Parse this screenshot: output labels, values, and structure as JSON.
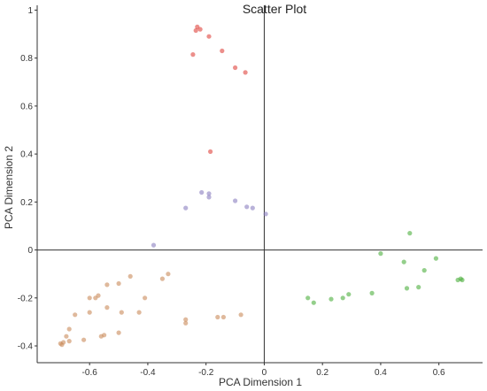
{
  "chart_data": {
    "type": "scatter",
    "title": "Scatter Plot",
    "xlabel": "PCA Dimension 1",
    "ylabel": "PCA Dimension 2",
    "xlim": [
      -0.78,
      0.75
    ],
    "ylim": [
      -0.47,
      1.02
    ],
    "xticks": [
      -0.6,
      -0.4,
      -0.2,
      0,
      0.2,
      0.4,
      0.6
    ],
    "yticks": [
      -0.4,
      -0.2,
      0,
      0.2,
      0.4,
      0.6,
      0.8,
      1
    ],
    "grid": false,
    "reference_lines": {
      "x": 0,
      "y": 0
    },
    "series": [
      {
        "color": "#e0443e",
        "points": [
          [
            -0.23,
            0.93
          ],
          [
            -0.22,
            0.92
          ],
          [
            -0.235,
            0.915
          ],
          [
            -0.19,
            0.89
          ],
          [
            -0.245,
            0.815
          ],
          [
            -0.145,
            0.83
          ],
          [
            -0.1,
            0.76
          ],
          [
            -0.065,
            0.74
          ],
          [
            -0.185,
            0.41
          ]
        ]
      },
      {
        "color": "#8a7fc0",
        "points": [
          [
            -0.215,
            0.24
          ],
          [
            -0.19,
            0.235
          ],
          [
            -0.19,
            0.22
          ],
          [
            -0.27,
            0.175
          ],
          [
            -0.1,
            0.205
          ],
          [
            -0.06,
            0.18
          ],
          [
            -0.04,
            0.175
          ],
          [
            0.005,
            0.15
          ],
          [
            -0.38,
            0.02
          ]
        ]
      },
      {
        "color": "#4caf3e",
        "points": [
          [
            0.5,
            0.07
          ],
          [
            0.4,
            -0.015
          ],
          [
            0.59,
            -0.035
          ],
          [
            0.48,
            -0.05
          ],
          [
            0.55,
            -0.085
          ],
          [
            0.53,
            -0.155
          ],
          [
            0.49,
            -0.16
          ],
          [
            0.37,
            -0.18
          ],
          [
            0.29,
            -0.185
          ],
          [
            0.27,
            -0.2
          ],
          [
            0.23,
            -0.205
          ],
          [
            0.15,
            -0.2
          ],
          [
            0.17,
            -0.22
          ],
          [
            0.665,
            -0.125
          ],
          [
            0.675,
            -0.12
          ],
          [
            0.68,
            -0.125
          ]
        ]
      },
      {
        "color": "#c98a5a",
        "points": [
          [
            -0.46,
            -0.11
          ],
          [
            -0.5,
            -0.14
          ],
          [
            -0.54,
            -0.145
          ],
          [
            -0.35,
            -0.12
          ],
          [
            -0.33,
            -0.1
          ],
          [
            -0.57,
            -0.19
          ],
          [
            -0.58,
            -0.2
          ],
          [
            -0.6,
            -0.2
          ],
          [
            -0.41,
            -0.2
          ],
          [
            -0.54,
            -0.24
          ],
          [
            -0.49,
            -0.26
          ],
          [
            -0.43,
            -0.26
          ],
          [
            -0.6,
            -0.26
          ],
          [
            -0.65,
            -0.27
          ],
          [
            -0.27,
            -0.29
          ],
          [
            -0.27,
            -0.305
          ],
          [
            -0.16,
            -0.28
          ],
          [
            -0.14,
            -0.28
          ],
          [
            -0.08,
            -0.27
          ],
          [
            -0.67,
            -0.33
          ],
          [
            -0.68,
            -0.36
          ],
          [
            -0.62,
            -0.375
          ],
          [
            -0.56,
            -0.36
          ],
          [
            -0.55,
            -0.355
          ],
          [
            -0.5,
            -0.345
          ],
          [
            -0.67,
            -0.38
          ],
          [
            -0.69,
            -0.385
          ],
          [
            -0.7,
            -0.39
          ],
          [
            -0.695,
            -0.395
          ]
        ]
      }
    ]
  }
}
